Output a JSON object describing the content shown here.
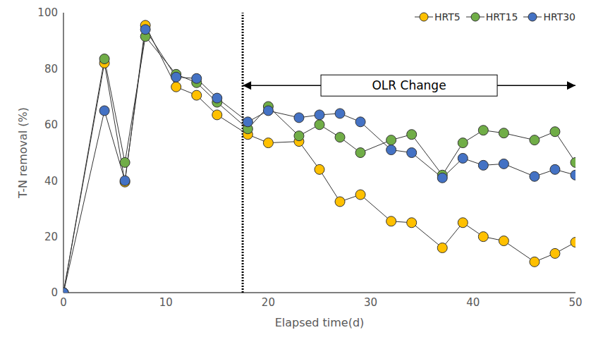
{
  "chart_data": {
    "type": "line",
    "x_label": "Elapsed time(d)",
    "y_label": "T-N removal (%)",
    "x": [
      0,
      4,
      6,
      8,
      11,
      13,
      15,
      18,
      20,
      23,
      25,
      27,
      29,
      32,
      34,
      37,
      39,
      41,
      43,
      46,
      48,
      50
    ],
    "series": [
      {
        "name": "HRT5",
        "color": "#FFC000",
        "marker": "circle",
        "values": [
          0,
          82,
          39.5,
          95.5,
          73.5,
          70.5,
          63.5,
          56.5,
          53.5,
          54,
          44,
          32.5,
          35,
          25.5,
          25,
          16,
          25,
          20,
          18.5,
          11,
          14,
          18
        ]
      },
      {
        "name": "HRT15",
        "color": "#70AD47",
        "marker": "circle",
        "values": [
          0,
          83.5,
          46.5,
          91.5,
          78,
          75,
          68,
          58.5,
          66.5,
          56,
          60,
          55.5,
          50,
          54.5,
          56.5,
          42,
          53.5,
          58,
          57,
          54.5,
          57.5,
          46.5
        ]
      },
      {
        "name": "HRT30",
        "color": "#4472C4",
        "marker": "circle",
        "values": [
          0,
          65,
          40,
          94,
          77,
          76.5,
          69.5,
          61,
          65,
          62.5,
          63.5,
          64,
          61,
          51,
          50,
          41,
          48,
          45.5,
          46,
          41.5,
          44,
          42
        ]
      }
    ],
    "xlim": [
      0,
      50
    ],
    "xticks": [
      0,
      10,
      20,
      30,
      40,
      50
    ],
    "ylim": [
      0,
      100
    ],
    "yticks": [
      0,
      20,
      40,
      60,
      80,
      100
    ],
    "grid": false,
    "legend": "top right",
    "vline": 17.5,
    "annotations": [
      {
        "text": "OLR Change",
        "x": [
          17.5,
          50
        ],
        "y": 74
      }
    ]
  }
}
